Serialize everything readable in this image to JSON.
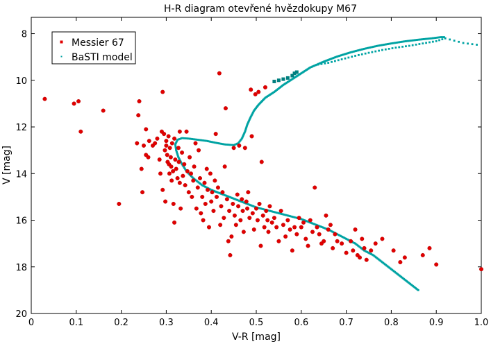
{
  "chart_data": {
    "type": "scatter",
    "title": "H-R diagram otevřené hvězdokupy M67",
    "xlabel": "V-R [mag]",
    "ylabel": "V [mag]",
    "xlim": [
      0,
      1.0
    ],
    "ylim": [
      20,
      7.3
    ],
    "y_inverted": true,
    "grid": false,
    "legend_position": "top-left",
    "x_ticks": [
      0,
      0.1,
      0.2,
      0.3,
      0.4,
      0.5,
      0.6,
      0.7,
      0.8,
      0.9,
      1.0
    ],
    "x_tick_labels": [
      "0",
      "0.1",
      "0.2",
      "0.3",
      "0.4",
      "0.5",
      "0.6",
      "0.7",
      "0.8",
      "0.9",
      "1.0"
    ],
    "y_ticks": [
      8,
      10,
      12,
      14,
      16,
      18,
      20
    ],
    "y_tick_labels": [
      "8",
      "10",
      "12",
      "14",
      "16",
      "18",
      "20"
    ],
    "series": [
      {
        "name": "Messier 67",
        "color": "#e00000",
        "marker": "circle",
        "points": [
          [
            0.03,
            10.8
          ],
          [
            0.095,
            11.0
          ],
          [
            0.105,
            10.9
          ],
          [
            0.11,
            12.2
          ],
          [
            0.16,
            11.3
          ],
          [
            0.195,
            15.3
          ],
          [
            0.235,
            12.7
          ],
          [
            0.24,
            10.9
          ],
          [
            0.238,
            11.5
          ],
          [
            0.245,
            13.8
          ],
          [
            0.247,
            14.8
          ],
          [
            0.25,
            12.8
          ],
          [
            0.255,
            12.1
          ],
          [
            0.255,
            13.2
          ],
          [
            0.26,
            13.3
          ],
          [
            0.262,
            12.6
          ],
          [
            0.27,
            12.8
          ],
          [
            0.275,
            12.7
          ],
          [
            0.28,
            12.5
          ],
          [
            0.285,
            13.4
          ],
          [
            0.287,
            14.0
          ],
          [
            0.29,
            12.2
          ],
          [
            0.292,
            10.5
          ],
          [
            0.292,
            14.7
          ],
          [
            0.295,
            12.3
          ],
          [
            0.297,
            13.0
          ],
          [
            0.298,
            15.2
          ],
          [
            0.3,
            12.6
          ],
          [
            0.3,
            12.8
          ],
          [
            0.302,
            13.2
          ],
          [
            0.303,
            13.5
          ],
          [
            0.305,
            12.4
          ],
          [
            0.306,
            13.6
          ],
          [
            0.307,
            14.0
          ],
          [
            0.308,
            12.9
          ],
          [
            0.31,
            13.3
          ],
          [
            0.311,
            13.7
          ],
          [
            0.312,
            14.3
          ],
          [
            0.313,
            12.7
          ],
          [
            0.315,
            13.9
          ],
          [
            0.316,
            15.3
          ],
          [
            0.318,
            12.5
          ],
          [
            0.318,
            16.1
          ],
          [
            0.32,
            13.4
          ],
          [
            0.322,
            13.8
          ],
          [
            0.325,
            14.2
          ],
          [
            0.327,
            12.9
          ],
          [
            0.328,
            13.5
          ],
          [
            0.33,
            12.2
          ],
          [
            0.33,
            14.4
          ],
          [
            0.332,
            15.5
          ],
          [
            0.335,
            13.1
          ],
          [
            0.337,
            14.1
          ],
          [
            0.34,
            13.6
          ],
          [
            0.342,
            14.5
          ],
          [
            0.345,
            12.2
          ],
          [
            0.347,
            13.9
          ],
          [
            0.35,
            14.8
          ],
          [
            0.352,
            13.3
          ],
          [
            0.355,
            14.0
          ],
          [
            0.357,
            15.0
          ],
          [
            0.36,
            14.3
          ],
          [
            0.362,
            13.7
          ],
          [
            0.365,
            12.7
          ],
          [
            0.367,
            15.5
          ],
          [
            0.37,
            14.6
          ],
          [
            0.372,
            13.0
          ],
          [
            0.375,
            14.2
          ],
          [
            0.377,
            15.7
          ],
          [
            0.38,
            15.0
          ],
          [
            0.382,
            16.0
          ],
          [
            0.385,
            14.4
          ],
          [
            0.387,
            15.3
          ],
          [
            0.39,
            13.8
          ],
          [
            0.392,
            14.7
          ],
          [
            0.395,
            16.3
          ],
          [
            0.398,
            14.0
          ],
          [
            0.4,
            15.2
          ],
          [
            0.402,
            14.8
          ],
          [
            0.405,
            15.6
          ],
          [
            0.408,
            14.3
          ],
          [
            0.41,
            12.3
          ],
          [
            0.412,
            15.0
          ],
          [
            0.415,
            14.6
          ],
          [
            0.418,
            9.7
          ],
          [
            0.42,
            16.2
          ],
          [
            0.422,
            15.4
          ],
          [
            0.425,
            14.8
          ],
          [
            0.428,
            15.9
          ],
          [
            0.43,
            13.7
          ],
          [
            0.432,
            11.2
          ],
          [
            0.435,
            15.1
          ],
          [
            0.438,
            16.9
          ],
          [
            0.44,
            15.6
          ],
          [
            0.442,
            17.5
          ],
          [
            0.445,
            16.7
          ],
          [
            0.448,
            15.3
          ],
          [
            0.45,
            12.9
          ],
          [
            0.452,
            15.8
          ],
          [
            0.455,
            16.2
          ],
          [
            0.458,
            14.9
          ],
          [
            0.46,
            15.4
          ],
          [
            0.462,
            12.8
          ],
          [
            0.465,
            16.0
          ],
          [
            0.468,
            15.1
          ],
          [
            0.47,
            15.6
          ],
          [
            0.472,
            16.5
          ],
          [
            0.475,
            12.9
          ],
          [
            0.478,
            15.2
          ],
          [
            0.48,
            15.5
          ],
          [
            0.482,
            14.8
          ],
          [
            0.485,
            15.9
          ],
          [
            0.488,
            10.4
          ],
          [
            0.49,
            12.4
          ],
          [
            0.492,
            15.7
          ],
          [
            0.495,
            16.4
          ],
          [
            0.498,
            10.6
          ],
          [
            0.5,
            15.5
          ],
          [
            0.503,
            16.0
          ],
          [
            0.505,
            10.5
          ],
          [
            0.507,
            15.3
          ],
          [
            0.51,
            17.1
          ],
          [
            0.512,
            13.5
          ],
          [
            0.515,
            15.8
          ],
          [
            0.518,
            16.3
          ],
          [
            0.52,
            10.3
          ],
          [
            0.522,
            15.6
          ],
          [
            0.525,
            16.0
          ],
          [
            0.527,
            16.5
          ],
          [
            0.53,
            15.4
          ],
          [
            0.535,
            16.1
          ],
          [
            0.54,
            15.9
          ],
          [
            0.545,
            16.3
          ],
          [
            0.55,
            16.9
          ],
          [
            0.555,
            15.6
          ],
          [
            0.56,
            16.2
          ],
          [
            0.565,
            16.7
          ],
          [
            0.57,
            16.0
          ],
          [
            0.575,
            16.4
          ],
          [
            0.58,
            17.3
          ],
          [
            0.585,
            16.3
          ],
          [
            0.59,
            16.6
          ],
          [
            0.595,
            15.9
          ],
          [
            0.6,
            16.3
          ],
          [
            0.605,
            16.1
          ],
          [
            0.61,
            16.8
          ],
          [
            0.615,
            17.1
          ],
          [
            0.62,
            16.0
          ],
          [
            0.625,
            16.5
          ],
          [
            0.63,
            14.6
          ],
          [
            0.635,
            16.3
          ],
          [
            0.64,
            16.6
          ],
          [
            0.645,
            17.0
          ],
          [
            0.65,
            16.9
          ],
          [
            0.655,
            15.8
          ],
          [
            0.66,
            16.4
          ],
          [
            0.665,
            16.2
          ],
          [
            0.67,
            17.2
          ],
          [
            0.675,
            16.6
          ],
          [
            0.68,
            16.9
          ],
          [
            0.69,
            17.0
          ],
          [
            0.7,
            17.4
          ],
          [
            0.71,
            16.9
          ],
          [
            0.715,
            17.3
          ],
          [
            0.72,
            16.4
          ],
          [
            0.725,
            17.5
          ],
          [
            0.73,
            17.6
          ],
          [
            0.735,
            16.8
          ],
          [
            0.74,
            17.2
          ],
          [
            0.745,
            17.7
          ],
          [
            0.755,
            17.3
          ],
          [
            0.765,
            17.0
          ],
          [
            0.78,
            16.8
          ],
          [
            0.805,
            17.3
          ],
          [
            0.82,
            17.8
          ],
          [
            0.83,
            17.6
          ],
          [
            0.87,
            17.5
          ],
          [
            0.885,
            17.2
          ],
          [
            0.9,
            17.9
          ],
          [
            1.0,
            18.1
          ]
        ]
      },
      {
        "name": "BaSTI model",
        "color": "#00a3a3",
        "marker": "square",
        "curve": [
          [
            0.86,
            19.0
          ],
          [
            0.84,
            18.7
          ],
          [
            0.82,
            18.4
          ],
          [
            0.8,
            18.1
          ],
          [
            0.78,
            17.8
          ],
          [
            0.76,
            17.5
          ],
          [
            0.74,
            17.3
          ],
          [
            0.72,
            17.0
          ],
          [
            0.7,
            16.8
          ],
          [
            0.68,
            16.6
          ],
          [
            0.66,
            16.4
          ],
          [
            0.64,
            16.25
          ],
          [
            0.62,
            16.1
          ],
          [
            0.6,
            15.95
          ],
          [
            0.58,
            15.85
          ],
          [
            0.56,
            15.75
          ],
          [
            0.54,
            15.65
          ],
          [
            0.52,
            15.55
          ],
          [
            0.5,
            15.45
          ],
          [
            0.48,
            15.3
          ],
          [
            0.46,
            15.15
          ],
          [
            0.44,
            15.0
          ],
          [
            0.42,
            14.85
          ],
          [
            0.4,
            14.7
          ],
          [
            0.38,
            14.5
          ],
          [
            0.36,
            14.2
          ],
          [
            0.345,
            13.9
          ],
          [
            0.335,
            13.6
          ],
          [
            0.327,
            13.3
          ],
          [
            0.322,
            13.0
          ],
          [
            0.32,
            12.75
          ],
          [
            0.325,
            12.55
          ],
          [
            0.335,
            12.48
          ],
          [
            0.35,
            12.5
          ],
          [
            0.37,
            12.55
          ],
          [
            0.39,
            12.6
          ],
          [
            0.41,
            12.68
          ],
          [
            0.43,
            12.75
          ],
          [
            0.45,
            12.78
          ],
          [
            0.46,
            12.7
          ],
          [
            0.468,
            12.5
          ],
          [
            0.475,
            12.2
          ],
          [
            0.48,
            11.9
          ],
          [
            0.487,
            11.6
          ],
          [
            0.495,
            11.3
          ],
          [
            0.505,
            11.05
          ],
          [
            0.52,
            10.75
          ],
          [
            0.54,
            10.5
          ],
          [
            0.56,
            10.2
          ],
          [
            0.58,
            9.95
          ],
          [
            0.6,
            9.7
          ],
          [
            0.62,
            9.45
          ],
          [
            0.65,
            9.2
          ],
          [
            0.68,
            8.98
          ],
          [
            0.71,
            8.8
          ],
          [
            0.74,
            8.65
          ],
          [
            0.77,
            8.52
          ],
          [
            0.8,
            8.42
          ],
          [
            0.83,
            8.33
          ],
          [
            0.86,
            8.26
          ],
          [
            0.89,
            8.2
          ],
          [
            0.91,
            8.15
          ],
          [
            0.92,
            8.15
          ]
        ],
        "branch": [
          [
            0.92,
            8.2
          ],
          [
            0.9,
            8.32
          ],
          [
            0.87,
            8.42
          ],
          [
            0.84,
            8.52
          ],
          [
            0.81,
            8.6
          ],
          [
            0.78,
            8.7
          ],
          [
            0.75,
            8.82
          ],
          [
            0.72,
            8.95
          ],
          [
            0.69,
            9.1
          ],
          [
            0.66,
            9.25
          ],
          [
            0.63,
            9.35
          ]
        ],
        "agb": [
          [
            0.92,
            8.2
          ],
          [
            0.94,
            8.3
          ],
          [
            0.96,
            8.4
          ],
          [
            0.98,
            8.45
          ],
          [
            1.0,
            8.5
          ]
        ],
        "clump": [
          [
            0.54,
            10.05
          ],
          [
            0.55,
            10.0
          ],
          [
            0.56,
            9.95
          ],
          [
            0.57,
            9.9
          ],
          [
            0.58,
            9.8
          ],
          [
            0.585,
            9.7
          ],
          [
            0.59,
            9.65
          ]
        ]
      }
    ]
  }
}
